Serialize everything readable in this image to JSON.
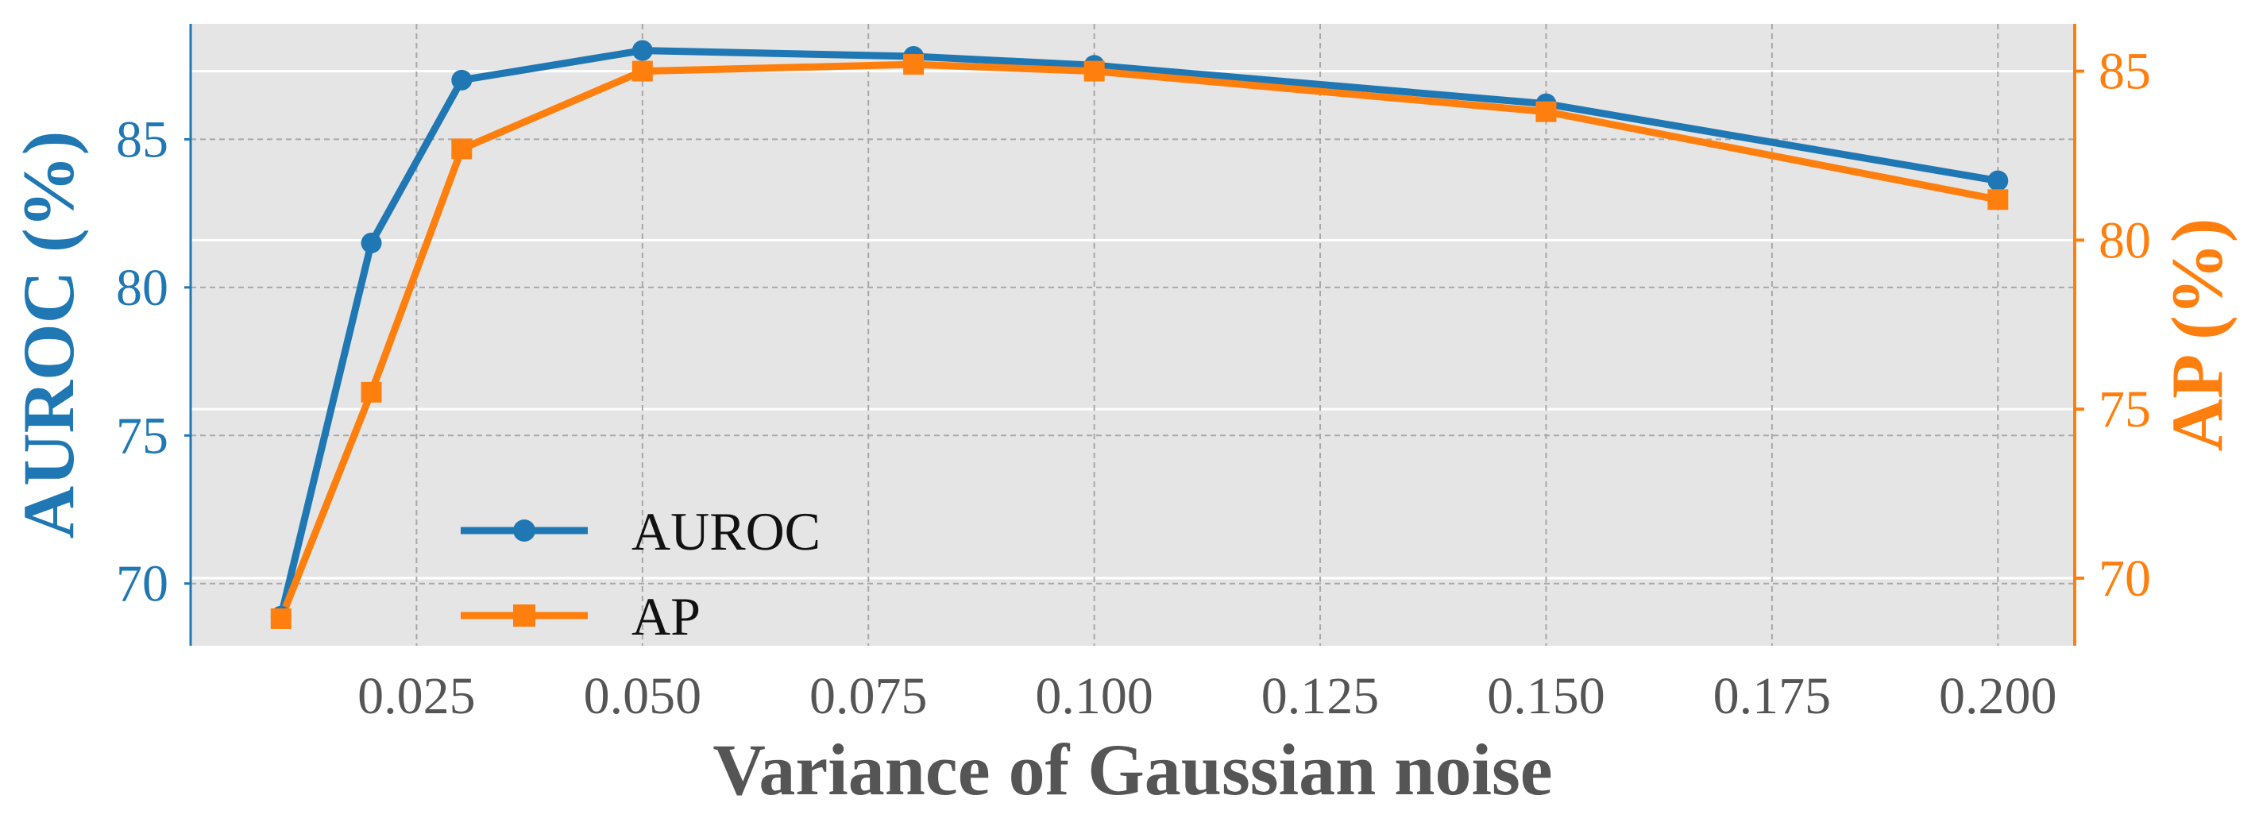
{
  "chart_data": {
    "type": "line",
    "xlabel": "Variance of Gaussian noise",
    "ylabel_left": "AUROC (%)",
    "ylabel_right": "AP (%)",
    "x": [
      0.01,
      0.02,
      0.03,
      0.05,
      0.08,
      0.1,
      0.15,
      0.2
    ],
    "xlim": [
      0.0,
      0.2085
    ],
    "xticks": [
      "0.025",
      "0.050",
      "0.075",
      "0.100",
      "0.125",
      "0.150",
      "0.175",
      "0.200"
    ],
    "ylim_left": [
      67.9,
      88.9
    ],
    "yticks_left": [
      "70",
      "75",
      "80",
      "85"
    ],
    "ylim_right": [
      68.0,
      86.4
    ],
    "yticks_right": [
      "70",
      "75",
      "80",
      "85"
    ],
    "grid": true,
    "legend_position": "lower-left",
    "series": [
      {
        "name": "AUROC",
        "axis": "left",
        "marker": "circle",
        "color": "#1f77b4",
        "values": [
          68.9,
          81.5,
          87.0,
          88.0,
          87.8,
          87.5,
          86.2,
          83.6
        ]
      },
      {
        "name": "AP",
        "axis": "right",
        "marker": "square",
        "color": "#ff7f0e",
        "values": [
          68.8,
          75.5,
          82.7,
          85.0,
          85.2,
          85.0,
          83.8,
          81.2
        ]
      }
    ]
  }
}
